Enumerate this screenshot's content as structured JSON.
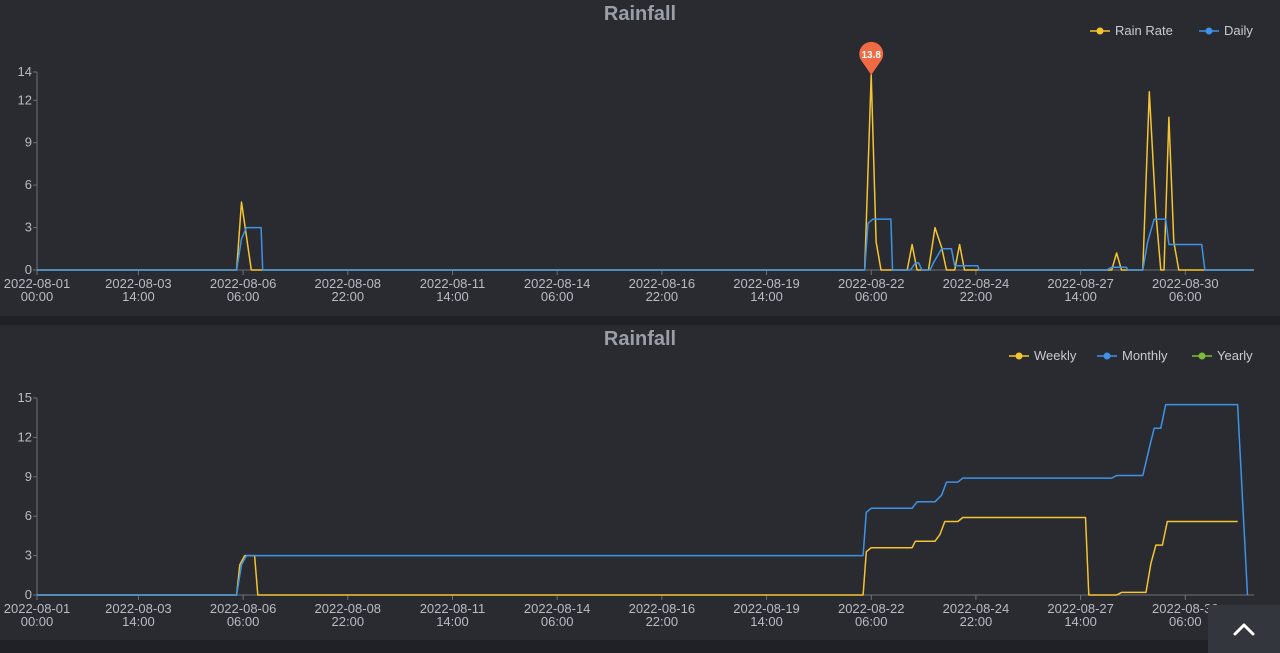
{
  "scroll_top": {
    "icon": "chevron-up-icon"
  },
  "chart_data": [
    {
      "type": "line",
      "title": "Rainfall",
      "legend_position": "top-right",
      "x_unit": "hours since 2022-08-01 00:00",
      "x_range": [
        0,
        744
      ],
      "ylim": [
        0,
        14
      ],
      "yticks": [
        0,
        3,
        6,
        9,
        12,
        14
      ],
      "xticks": [
        {
          "x": 0,
          "line1": "2022-08-01",
          "line2": "00:00"
        },
        {
          "x": 62,
          "line1": "2022-08-03",
          "line2": "14:00"
        },
        {
          "x": 126,
          "line1": "2022-08-06",
          "line2": "06:00"
        },
        {
          "x": 190,
          "line1": "2022-08-08",
          "line2": "22:00"
        },
        {
          "x": 254,
          "line1": "2022-08-11",
          "line2": "14:00"
        },
        {
          "x": 318,
          "line1": "2022-08-14",
          "line2": "06:00"
        },
        {
          "x": 382,
          "line1": "2022-08-16",
          "line2": "22:00"
        },
        {
          "x": 446,
          "line1": "2022-08-19",
          "line2": "14:00"
        },
        {
          "x": 510,
          "line1": "2022-08-22",
          "line2": "06:00"
        },
        {
          "x": 574,
          "line1": "2022-08-24",
          "line2": "22:00"
        },
        {
          "x": 638,
          "line1": "2022-08-27",
          "line2": "14:00"
        },
        {
          "x": 702,
          "line1": "2022-08-30",
          "line2": "06:00"
        }
      ],
      "max_marker": {
        "series": "Rain Rate",
        "x": 510,
        "value": 13.8,
        "label": "13.8",
        "color": "#f06a43"
      },
      "series": [
        {
          "name": "Rain Rate",
          "color": "#f4c431",
          "points": [
            [
              0,
              0
            ],
            [
              122,
              0
            ],
            [
              125,
              4.8
            ],
            [
              131,
              0
            ],
            [
              506,
              0
            ],
            [
              510,
              13.8
            ],
            [
              513,
              2
            ],
            [
              516,
              0
            ],
            [
              532,
              0
            ],
            [
              535,
              1.8
            ],
            [
              538,
              0
            ],
            [
              545,
              0
            ],
            [
              549,
              3
            ],
            [
              553,
              1.6
            ],
            [
              556,
              0
            ],
            [
              561,
              0
            ],
            [
              564,
              1.8
            ],
            [
              567,
              0
            ],
            [
              657,
              0
            ],
            [
              660,
              1.2
            ],
            [
              663,
              0
            ],
            [
              676,
              0
            ],
            [
              680,
              12.6
            ],
            [
              684,
              4
            ],
            [
              687,
              0
            ],
            [
              689,
              0
            ],
            [
              692,
              10.8
            ],
            [
              695,
              2
            ],
            [
              698,
              0
            ],
            [
              744,
              0
            ]
          ]
        },
        {
          "name": "Daily",
          "color": "#3d93e6",
          "points": [
            [
              0,
              0
            ],
            [
              122,
              0
            ],
            [
              125,
              2.2
            ],
            [
              128,
              3
            ],
            [
              137,
              3
            ],
            [
              138,
              0
            ],
            [
              506,
              0
            ],
            [
              508,
              3.3
            ],
            [
              511,
              3.6
            ],
            [
              522,
              3.6
            ],
            [
              523,
              0
            ],
            [
              534,
              0
            ],
            [
              537,
              0.5
            ],
            [
              539,
              0.5
            ],
            [
              541,
              0
            ],
            [
              546,
              0
            ],
            [
              548,
              0.5
            ],
            [
              553,
              1.5
            ],
            [
              559,
              1.5
            ],
            [
              561,
              0.3
            ],
            [
              572,
              0.3
            ],
            [
              575,
              0.3
            ],
            [
              576,
              0
            ],
            [
              654,
              0
            ],
            [
              657,
              0.2
            ],
            [
              666,
              0.2
            ],
            [
              667,
              0
            ],
            [
              676,
              0
            ],
            [
              679,
              2
            ],
            [
              683,
              3.6
            ],
            [
              690,
              3.6
            ],
            [
              692,
              1.8
            ],
            [
              712,
              1.8
            ],
            [
              714,
              0
            ],
            [
              744,
              0
            ]
          ]
        }
      ]
    },
    {
      "type": "line",
      "title": "Rainfall",
      "legend_position": "top-right",
      "x_unit": "hours since 2022-08-01 00:00",
      "x_range": [
        0,
        744
      ],
      "ylim": [
        0,
        15
      ],
      "yticks": [
        0,
        3,
        6,
        9,
        12,
        15
      ],
      "xticks": [
        {
          "x": 0,
          "line1": "2022-08-01",
          "line2": "00:00"
        },
        {
          "x": 62,
          "line1": "2022-08-03",
          "line2": "14:00"
        },
        {
          "x": 126,
          "line1": "2022-08-06",
          "line2": "06:00"
        },
        {
          "x": 190,
          "line1": "2022-08-08",
          "line2": "22:00"
        },
        {
          "x": 254,
          "line1": "2022-08-11",
          "line2": "14:00"
        },
        {
          "x": 318,
          "line1": "2022-08-14",
          "line2": "06:00"
        },
        {
          "x": 382,
          "line1": "2022-08-16",
          "line2": "22:00"
        },
        {
          "x": 446,
          "line1": "2022-08-19",
          "line2": "14:00"
        },
        {
          "x": 510,
          "line1": "2022-08-22",
          "line2": "06:00"
        },
        {
          "x": 574,
          "line1": "2022-08-24",
          "line2": "22:00"
        },
        {
          "x": 638,
          "line1": "2022-08-27",
          "line2": "14:00"
        },
        {
          "x": 702,
          "line1": "2022-08-30",
          "line2": "06:00"
        }
      ],
      "series": [
        {
          "name": "Weekly",
          "color": "#f4c431",
          "points": [
            [
              0,
              0
            ],
            [
              122,
              0
            ],
            [
              124,
              2.3
            ],
            [
              127,
              3
            ],
            [
              133,
              3
            ],
            [
              135,
              0
            ],
            [
              505,
              0
            ],
            [
              507,
              3.3
            ],
            [
              510,
              3.6
            ],
            [
              535,
              3.6
            ],
            [
              537,
              4.1
            ],
            [
              549,
              4.1
            ],
            [
              552,
              4.6
            ],
            [
              555,
              5.6
            ],
            [
              563,
              5.6
            ],
            [
              566,
              5.9
            ],
            [
              641,
              5.9
            ],
            [
              643,
              0
            ],
            [
              660,
              0
            ],
            [
              663,
              0.2
            ],
            [
              678,
              0.2
            ],
            [
              681,
              2.4
            ],
            [
              684,
              3.8
            ],
            [
              688,
              3.8
            ],
            [
              691,
              5.6
            ],
            [
              734,
              5.6
            ]
          ]
        },
        {
          "name": "Monthly",
          "color": "#3d93e6",
          "points": [
            [
              0,
              0
            ],
            [
              122,
              0
            ],
            [
              125,
              2.3
            ],
            [
              128,
              3
            ],
            [
              505,
              3
            ],
            [
              507,
              6.3
            ],
            [
              510,
              6.6
            ],
            [
              535,
              6.6
            ],
            [
              538,
              7.1
            ],
            [
              549,
              7.1
            ],
            [
              553,
              7.6
            ],
            [
              556,
              8.6
            ],
            [
              563,
              8.6
            ],
            [
              566,
              8.9
            ],
            [
              657,
              8.9
            ],
            [
              660,
              9.1
            ],
            [
              676,
              9.1
            ],
            [
              680,
              11.2
            ],
            [
              683,
              12.7
            ],
            [
              687,
              12.7
            ],
            [
              690,
              14.5
            ],
            [
              734,
              14.5
            ],
            [
              740,
              0
            ]
          ]
        },
        {
          "name": "Yearly",
          "color": "#7dbd3a",
          "points": []
        }
      ]
    }
  ]
}
